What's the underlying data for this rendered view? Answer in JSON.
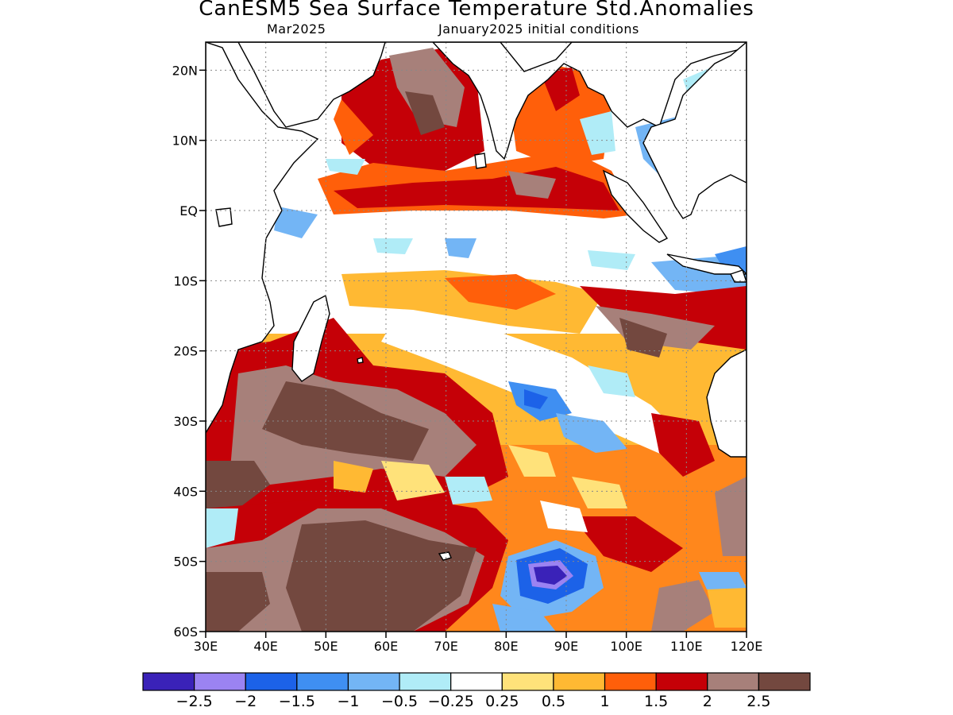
{
  "title": "CanESM5 Sea Surface Temperature Std.Anomalies",
  "subtitle_left": "Mar2025",
  "subtitle_right": "January2025 initial conditions",
  "map": {
    "lon_range": [
      30,
      120
    ],
    "lat_range": [
      -60,
      24
    ],
    "lat_ticks": [
      {
        "value": 20,
        "label": "20N"
      },
      {
        "value": 10,
        "label": "10N"
      },
      {
        "value": 0,
        "label": "EQ"
      },
      {
        "value": -10,
        "label": "10S"
      },
      {
        "value": -20,
        "label": "20S"
      },
      {
        "value": -30,
        "label": "30S"
      },
      {
        "value": -40,
        "label": "40S"
      },
      {
        "value": -50,
        "label": "50S"
      },
      {
        "value": -60,
        "label": "60S"
      }
    ],
    "lon_ticks": [
      {
        "value": 30,
        "label": "30E"
      },
      {
        "value": 40,
        "label": "40E"
      },
      {
        "value": 50,
        "label": "50E"
      },
      {
        "value": 60,
        "label": "60E"
      },
      {
        "value": 70,
        "label": "70E"
      },
      {
        "value": 80,
        "label": "80E"
      },
      {
        "value": 90,
        "label": "90E"
      },
      {
        "value": 100,
        "label": "100E"
      },
      {
        "value": 110,
        "label": "110E"
      },
      {
        "value": 120,
        "label": "120E"
      }
    ],
    "grid": true
  },
  "colorbar": {
    "colors": [
      "#3a22b8",
      "#9b83f2",
      "#1c62e8",
      "#3f8ff2",
      "#73b5f5",
      "#b0ecf7",
      "#ffffff",
      "#ffe27a",
      "#ffb933",
      "#ff5f0a",
      "#c50007",
      "#a7807a",
      "#73483f"
    ],
    "labels": [
      "−2.5",
      "−2",
      "−1.5",
      "−1",
      "−0.5",
      "−0.25",
      "0.25",
      "0.5",
      "1",
      "1.5",
      "2",
      "2.5"
    ]
  }
}
